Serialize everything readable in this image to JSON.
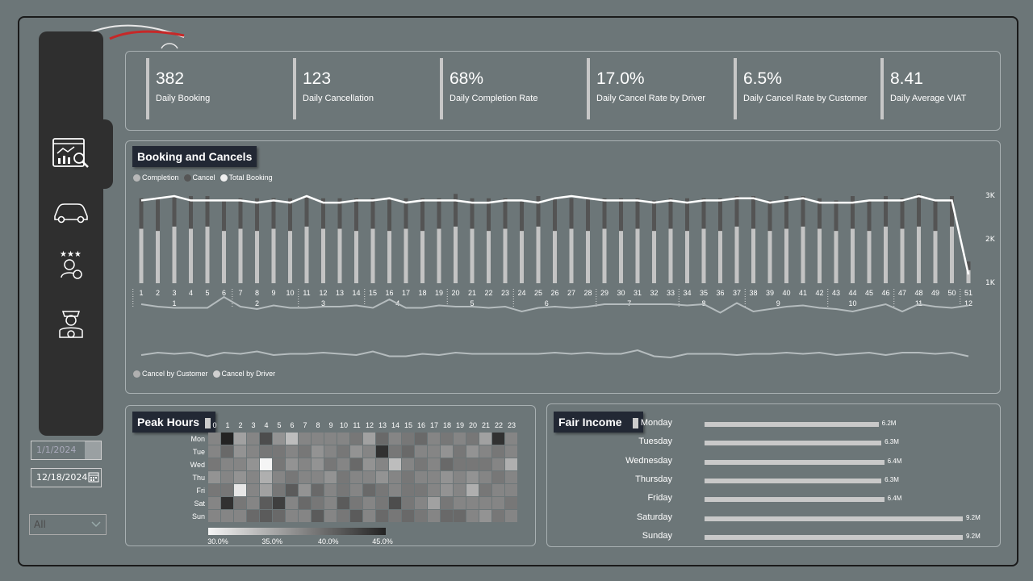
{
  "kpis": [
    {
      "value": "382",
      "label": "Daily Booking"
    },
    {
      "value": "123",
      "label": "Daily Cancellation"
    },
    {
      "value": "68%",
      "label": "Daily Completion Rate"
    },
    {
      "value": "17.0%",
      "label": "Daily Cancel Rate by Driver"
    },
    {
      "value": "6.5%",
      "label": "Daily Cancel Rate by Customer"
    },
    {
      "value": "8.41",
      "label": "Daily Average VIAT"
    }
  ],
  "filters": {
    "start_date": "1/1/2024",
    "end_date": "12/18/2024",
    "dropdown_value": "All"
  },
  "booking_chart": {
    "title": "Booking and Cancels",
    "legend": [
      "Completion",
      "Cancel",
      "Total Booking"
    ],
    "lower_legend": [
      "Cancel by Customer",
      "Cancel by Driver"
    ],
    "y_ticks": [
      "3K",
      "2K",
      "1K"
    ],
    "months": [
      "1",
      "2",
      "3",
      "4",
      "5",
      "6",
      "7",
      "8",
      "9",
      "10",
      "11",
      "12"
    ]
  },
  "chart_data": [
    {
      "type": "bar",
      "title": "Booking and Cancels",
      "x": [
        1,
        2,
        3,
        4,
        5,
        6,
        7,
        8,
        9,
        10,
        11,
        12,
        13,
        14,
        15,
        16,
        17,
        18,
        19,
        20,
        21,
        22,
        23,
        24,
        25,
        26,
        27,
        28,
        29,
        30,
        31,
        32,
        33,
        34,
        35,
        36,
        37,
        38,
        39,
        40,
        41,
        42,
        43,
        44,
        45,
        46,
        47,
        48,
        49,
        50,
        51
      ],
      "x_group_labels": [
        "1",
        "2",
        "3",
        "4",
        "5",
        "6",
        "7",
        "8",
        "9",
        "10",
        "11",
        "12"
      ],
      "series": [
        {
          "name": "Completion",
          "values": [
            2.25,
            2.2,
            2.3,
            2.25,
            2.3,
            2.2,
            2.25,
            2.2,
            2.25,
            2.2,
            2.3,
            2.25,
            2.25,
            2.2,
            2.25,
            2.2,
            2.25,
            2.2,
            2.25,
            2.3,
            2.25,
            2.2,
            2.25,
            2.2,
            2.3,
            2.2,
            2.25,
            2.2,
            2.25,
            2.2,
            2.25,
            2.2,
            2.25,
            2.2,
            2.25,
            2.2,
            2.3,
            2.25,
            2.2,
            2.25,
            2.3,
            2.25,
            2.2,
            2.25,
            2.2,
            2.3,
            2.25,
            2.3,
            2.2,
            2.3,
            1.3
          ]
        },
        {
          "name": "Cancel",
          "values": [
            0.7,
            0.75,
            0.7,
            0.75,
            0.7,
            0.7,
            0.7,
            0.75,
            0.7,
            0.75,
            0.7,
            0.7,
            0.7,
            0.75,
            0.7,
            0.75,
            0.7,
            0.75,
            0.7,
            0.75,
            0.7,
            0.75,
            0.7,
            0.7,
            0.7,
            0.75,
            0.7,
            0.75,
            0.7,
            0.75,
            0.7,
            0.7,
            0.7,
            0.75,
            0.7,
            0.75,
            0.7,
            0.75,
            0.7,
            0.75,
            0.7,
            0.7,
            0.7,
            0.75,
            0.7,
            0.7,
            0.7,
            0.75,
            0.7,
            0.7,
            0.2
          ]
        },
        {
          "name": "Total Booking",
          "values": [
            2.9,
            2.95,
            3.0,
            2.9,
            2.9,
            2.9,
            2.9,
            2.85,
            2.9,
            2.85,
            3.0,
            2.85,
            2.85,
            2.9,
            2.9,
            2.95,
            2.85,
            2.9,
            2.9,
            2.9,
            2.85,
            2.85,
            2.9,
            2.9,
            2.85,
            2.95,
            3.0,
            2.95,
            2.9,
            2.9,
            2.9,
            2.85,
            2.9,
            2.85,
            2.9,
            2.9,
            2.95,
            2.95,
            2.85,
            2.9,
            2.95,
            2.85,
            2.85,
            2.85,
            2.9,
            2.9,
            2.9,
            3.0,
            2.9,
            2.9,
            1.2
          ]
        }
      ],
      "ylim": [
        1,
        3
      ],
      "y_ticks": [
        "3K",
        "2K",
        "1K"
      ]
    },
    {
      "type": "line",
      "series": [
        {
          "name": "Cancel by Customer",
          "values": [
            0.6,
            0.5,
            0.45,
            0.45,
            0.45,
            0.9,
            0.5,
            0.4,
            0.55,
            0.45,
            0.45,
            0.5,
            0.5,
            0.55,
            0.45,
            0.8,
            0.45,
            0.45,
            0.55,
            0.5,
            0.5,
            0.45,
            0.5,
            0.3,
            0.45,
            0.5,
            0.45,
            0.5,
            0.6,
            0.6,
            0.6,
            0.6,
            0.6,
            0.55,
            0.6,
            0.25,
            0.65,
            0.3,
            0.4,
            0.5,
            0.55,
            0.45,
            0.4,
            0.3,
            0.45,
            0.6,
            0.3,
            0.6,
            0.5,
            0.45,
            0.55
          ]
        },
        {
          "name": "Cancel by Driver",
          "values": [
            0.4,
            0.5,
            0.45,
            0.5,
            0.35,
            0.5,
            0.45,
            0.55,
            0.4,
            0.45,
            0.45,
            0.5,
            0.45,
            0.4,
            0.55,
            0.35,
            0.35,
            0.45,
            0.4,
            0.5,
            0.45,
            0.45,
            0.45,
            0.45,
            0.45,
            0.5,
            0.45,
            0.5,
            0.45,
            0.45,
            0.6,
            0.35,
            0.3,
            0.45,
            0.45,
            0.45,
            0.4,
            0.45,
            0.45,
            0.5,
            0.45,
            0.5,
            0.4,
            0.45,
            0.5,
            0.4,
            0.5,
            0.5,
            0.45,
            0.5,
            0.35
          ]
        }
      ]
    },
    {
      "type": "heatmap",
      "title": "Peak Hours",
      "x": [
        "0",
        "1",
        "2",
        "3",
        "4",
        "5",
        "6",
        "7",
        "8",
        "9",
        "10",
        "11",
        "12",
        "13",
        "14",
        "15",
        "16",
        "17",
        "18",
        "19",
        "20",
        "21",
        "22",
        "23"
      ],
      "y": [
        "Mon",
        "Tue",
        "Wed",
        "Thu",
        "Fri",
        "Sat",
        "Sun"
      ],
      "values": [
        [
          38,
          45,
          36,
          38,
          42,
          37,
          34,
          38,
          38,
          38,
          38,
          39,
          36,
          40,
          38,
          39,
          40,
          38,
          39,
          38,
          39,
          36,
          44,
          38
        ],
        [
          38,
          40,
          37,
          38,
          39,
          39,
          38,
          39,
          37,
          38,
          39,
          37,
          38,
          44,
          39,
          40,
          38,
          38,
          37,
          39,
          37,
          38,
          39,
          38
        ],
        [
          39,
          38,
          38,
          37,
          30,
          39,
          37,
          38,
          37,
          39,
          38,
          40,
          37,
          38,
          34,
          38,
          39,
          38,
          40,
          39,
          39,
          39,
          38,
          35
        ],
        [
          37,
          38,
          37,
          38,
          35,
          38,
          39,
          38,
          38,
          37,
          39,
          38,
          38,
          37,
          38,
          39,
          38,
          38,
          37,
          38,
          37,
          38,
          39,
          38
        ],
        [
          39,
          39,
          31,
          38,
          36,
          39,
          41,
          37,
          40,
          38,
          39,
          38,
          40,
          39,
          38,
          39,
          39,
          38,
          37,
          38,
          35,
          39,
          38,
          38
        ],
        [
          38,
          44,
          39,
          38,
          41,
          43,
          38,
          40,
          39,
          38,
          41,
          39,
          38,
          39,
          42,
          39,
          38,
          36,
          39,
          38,
          38,
          38,
          38,
          39
        ],
        [
          38,
          38,
          38,
          40,
          41,
          40,
          38,
          38,
          41,
          38,
          39,
          41,
          38,
          40,
          39,
          40,
          39,
          38,
          40,
          40,
          38,
          37,
          39,
          38
        ]
      ],
      "scale_ticks": [
        "30.0%",
        "35.0%",
        "40.0%",
        "45.0%"
      ],
      "vmin": 30,
      "vmax": 45
    },
    {
      "type": "bar",
      "title": "Fair Income",
      "categories": [
        "Monday",
        "Tuesday",
        "Wednesday",
        "Thursday",
        "Friday",
        "Saturday",
        "Sunday"
      ],
      "values": [
        6.2,
        6.3,
        6.4,
        6.3,
        6.4,
        9.2,
        9.2
      ],
      "value_labels": [
        "6.2M",
        "6.3M",
        "6.4M",
        "6.3M",
        "6.4M",
        "9.2M",
        "9.2M"
      ]
    }
  ],
  "peak_hours": {
    "title": "Peak Hours"
  },
  "fair_income": {
    "title": "Fair Income"
  },
  "colors": {
    "background": "#6c7678",
    "sidebar": "#2f2f2f",
    "title_tag": "#222834",
    "bar_light": "#c7c7c7",
    "bar_dark": "#545454",
    "line": "#ffffff",
    "accent_red": "#d32f2f"
  },
  "icons": [
    "analytics-icon",
    "car-icon",
    "rating-user-icon",
    "driver-icon",
    "calendar-icon",
    "chevron-down-icon"
  ]
}
